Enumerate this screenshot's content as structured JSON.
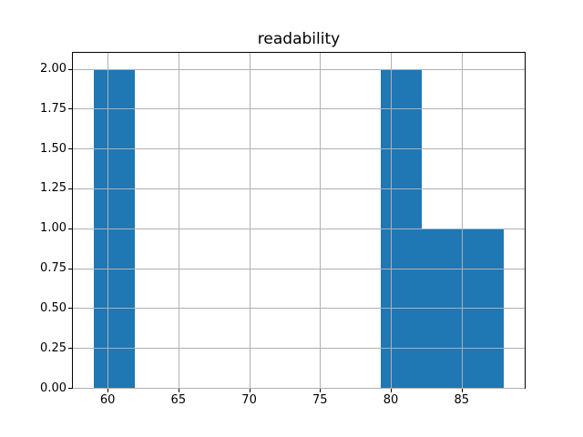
{
  "figure": {
    "background": "#ffffff"
  },
  "colors": {
    "bar": "#1f77b4",
    "grid": "#b0b0b0",
    "spine": "#000000",
    "text": "#000000"
  },
  "chart_data": {
    "type": "bar",
    "variant": "histogram",
    "title": "readability",
    "xlabel": "",
    "ylabel": "",
    "bin_edges": [
      59.0,
      61.9,
      64.8,
      67.7,
      70.6,
      73.5,
      76.4,
      79.3,
      82.2,
      85.1,
      88.0
    ],
    "counts": [
      2,
      0,
      0,
      0,
      0,
      0,
      0,
      2,
      1,
      1
    ],
    "xlim": [
      57.55,
      89.45
    ],
    "ylim": [
      0,
      2.1
    ],
    "x_ticks": [
      60,
      65,
      70,
      75,
      80,
      85
    ],
    "x_tick_labels": [
      "60",
      "65",
      "70",
      "75",
      "80",
      "85"
    ],
    "y_ticks": [
      0,
      0.25,
      0.5,
      0.75,
      1,
      1.25,
      1.5,
      1.75,
      2
    ],
    "y_tick_labels": [
      "0.00",
      "0.25",
      "0.50",
      "0.75",
      "1.00",
      "1.25",
      "1.50",
      "1.75",
      "2.00"
    ],
    "grid": true,
    "grid_above_bars": true,
    "legend": null,
    "bar_color": "#1f77b4",
    "grid_color": "#b0b0b0"
  }
}
